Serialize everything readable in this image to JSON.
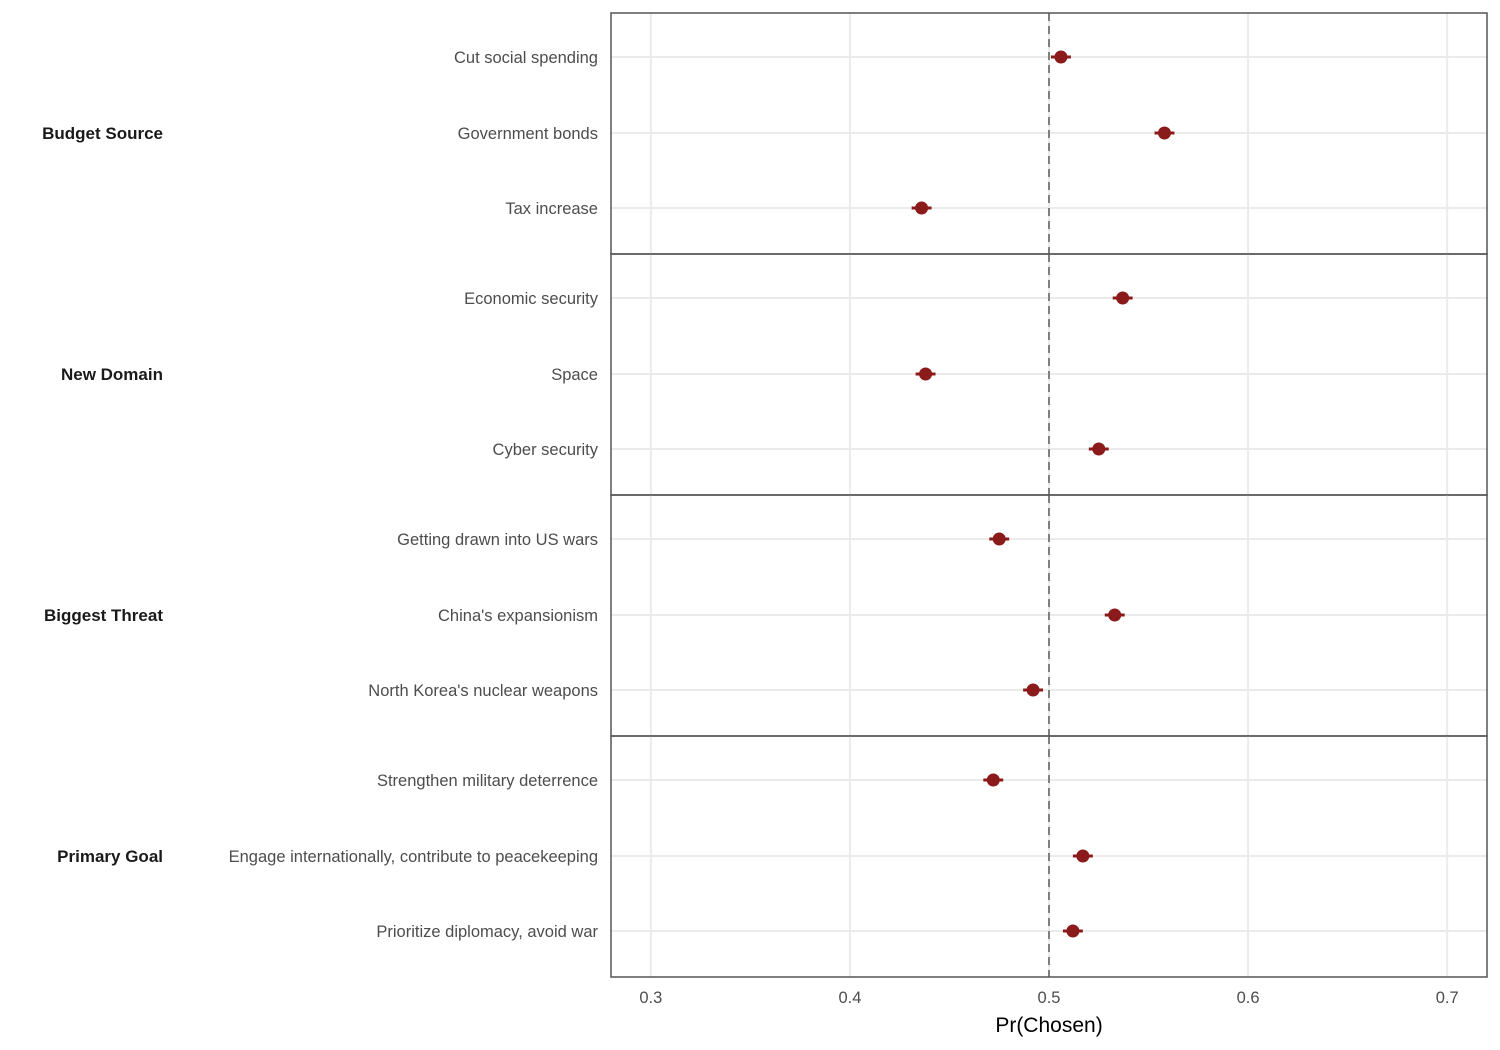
{
  "chart_data": {
    "type": "scatter",
    "subtype": "dot-and-whisker, faceted by attribute",
    "title": "",
    "xlabel": "Pr(Chosen)",
    "ylabel": "",
    "xlim": [
      0.28,
      0.72
    ],
    "xticks": [
      "0.3",
      "0.4",
      "0.5",
      "0.6",
      "0.7"
    ],
    "reference_line": {
      "x": 0.5,
      "style": "dashed"
    },
    "grid": true,
    "point_color": "#8b1a1a",
    "groups": [
      {
        "name": "Budget Source",
        "levels": [
          {
            "label": "Cut social spending",
            "estimate": 0.506,
            "lower": 0.501,
            "upper": 0.511
          },
          {
            "label": "Government bonds",
            "estimate": 0.558,
            "lower": 0.553,
            "upper": 0.563
          },
          {
            "label": "Tax increase",
            "estimate": 0.436,
            "lower": 0.431,
            "upper": 0.441
          }
        ]
      },
      {
        "name": "New Domain",
        "levels": [
          {
            "label": "Economic security",
            "estimate": 0.537,
            "lower": 0.532,
            "upper": 0.542
          },
          {
            "label": "Space",
            "estimate": 0.438,
            "lower": 0.433,
            "upper": 0.443
          },
          {
            "label": "Cyber security",
            "estimate": 0.525,
            "lower": 0.52,
            "upper": 0.53
          }
        ]
      },
      {
        "name": "Biggest Threat",
        "levels": [
          {
            "label": "Getting drawn into US wars",
            "estimate": 0.475,
            "lower": 0.47,
            "upper": 0.48
          },
          {
            "label": "China's expansionism",
            "estimate": 0.533,
            "lower": 0.528,
            "upper": 0.538
          },
          {
            "label": "North Korea's nuclear weapons",
            "estimate": 0.492,
            "lower": 0.487,
            "upper": 0.497
          }
        ]
      },
      {
        "name": "Primary Goal",
        "levels": [
          {
            "label": "Strengthen military deterrence",
            "estimate": 0.472,
            "lower": 0.467,
            "upper": 0.477
          },
          {
            "label": "Engage internationally, contribute to peacekeeping",
            "estimate": 0.517,
            "lower": 0.512,
            "upper": 0.522
          },
          {
            "label": "Prioritize diplomacy, avoid war",
            "estimate": 0.512,
            "lower": 0.507,
            "upper": 0.517
          }
        ]
      }
    ]
  }
}
